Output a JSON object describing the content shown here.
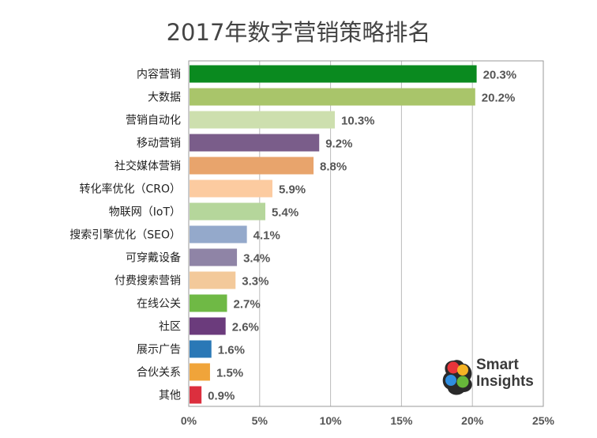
{
  "logo": {
    "line1": "Smart",
    "line2": "Insights"
  },
  "chart_data": {
    "type": "bar",
    "orientation": "horizontal",
    "title": "2017年数字营销策略排名",
    "xlabel": "",
    "ylabel": "",
    "xlim": [
      0,
      25
    ],
    "ticks": [
      0,
      5,
      10,
      15,
      20,
      25
    ],
    "tick_labels": [
      "0%",
      "5%",
      "10%",
      "15%",
      "20%",
      "25%"
    ],
    "grid": true,
    "categories": [
      "内容营销",
      "大数据",
      "营销自动化",
      "移动营销",
      "社交媒体营销",
      "转化率优化（CRO）",
      "物联网（IoT）",
      "搜索引擎优化（SEO）",
      "可穿戴设备",
      "付费搜索营销",
      "在线公关",
      "社区",
      "展示广告",
      "合伙关系",
      "其他"
    ],
    "values": [
      20.3,
      20.2,
      10.3,
      9.2,
      8.8,
      5.9,
      5.4,
      4.1,
      3.4,
      3.3,
      2.7,
      2.6,
      1.6,
      1.5,
      0.9
    ],
    "value_labels": [
      "20.3%",
      "20.2%",
      "10.3%",
      "9.2%",
      "8.8%",
      "5.9%",
      "5.4%",
      "4.1%",
      "3.4%",
      "3.3%",
      "2.7%",
      "2.6%",
      "1.6%",
      "1.5%",
      "0.9%"
    ],
    "colors": [
      "#0a8a1f",
      "#a9c56a",
      "#cddfae",
      "#7a5d8a",
      "#e8a46c",
      "#fccba0",
      "#b5d69b",
      "#94a9cb",
      "#8f84a6",
      "#f3c99a",
      "#6fb945",
      "#6b3b7c",
      "#2a78b6",
      "#f0a43a",
      "#dc2f3e"
    ]
  }
}
